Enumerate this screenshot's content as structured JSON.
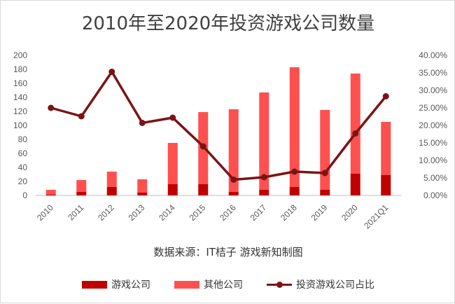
{
  "chart_data": {
    "type": "bar",
    "title": "2010年至2020年投资游戏公司数量",
    "source": "数据来源：IT桔子  游戏新知制图",
    "categories": [
      "2010",
      "2011",
      "2012",
      "2013",
      "2014",
      "2015",
      "2016",
      "2017",
      "2018",
      "2019",
      "2020",
      "2021Q1"
    ],
    "stacked": true,
    "series": [
      {
        "name": "游戏公司",
        "type": "bar",
        "axis": "left",
        "color": "#c00000",
        "values": [
          1,
          5,
          12,
          4,
          16,
          16,
          5,
          8,
          12,
          8,
          31,
          29
        ]
      },
      {
        "name": "其他公司",
        "type": "bar",
        "axis": "left",
        "color": "#ff5050",
        "values": [
          7,
          17,
          22,
          19,
          59,
          103,
          118,
          139,
          171,
          114,
          143,
          76
        ]
      },
      {
        "name": "投资游戏公司占比",
        "type": "line",
        "axis": "right",
        "color": "#7b1414",
        "values": [
          0.25,
          0.226,
          0.353,
          0.207,
          0.222,
          0.14,
          0.045,
          0.052,
          0.068,
          0.064,
          0.177,
          0.283
        ]
      }
    ],
    "y_left": {
      "min": 0,
      "max": 200,
      "step": 20,
      "ticks": [
        "0",
        "20",
        "40",
        "60",
        "80",
        "100",
        "120",
        "140",
        "160",
        "180",
        "200"
      ]
    },
    "y_right": {
      "min": 0,
      "max": 0.4,
      "step": 0.05,
      "ticks": [
        "0.00%",
        "5.00%",
        "10.00%",
        "15.00%",
        "20.00%",
        "25.00%",
        "30.00%",
        "35.00%",
        "40.00%"
      ]
    },
    "grid": false,
    "legend_position": "bottom"
  }
}
